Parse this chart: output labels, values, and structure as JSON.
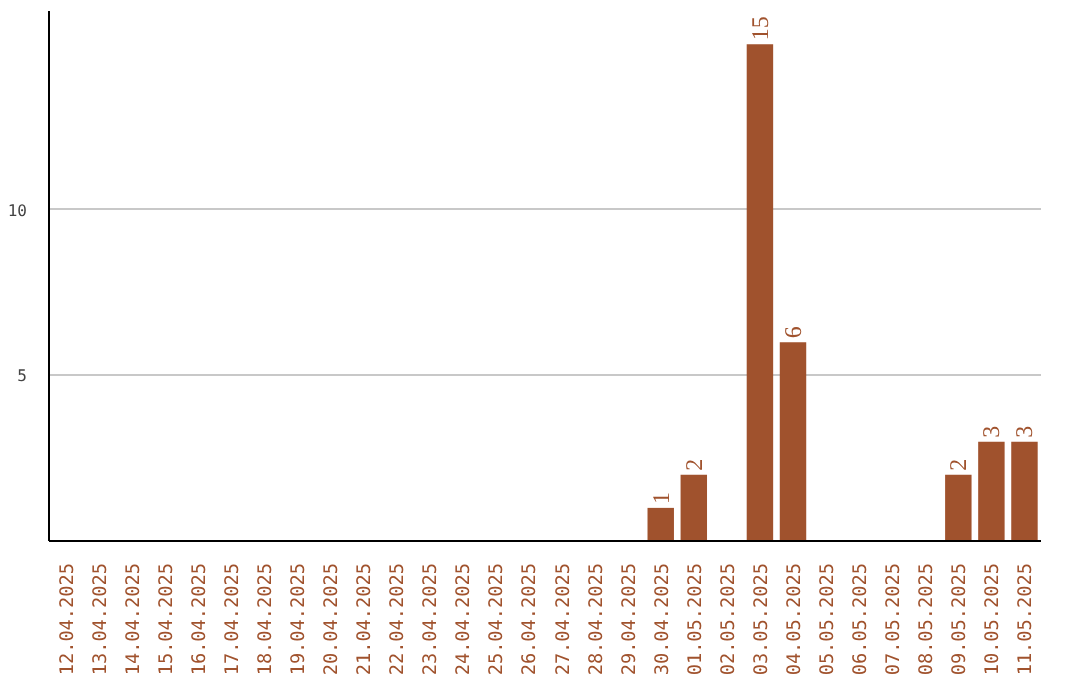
{
  "chart_data": {
    "type": "bar",
    "categories": [
      "12.04.2025",
      "13.04.2025",
      "14.04.2025",
      "15.04.2025",
      "16.04.2025",
      "17.04.2025",
      "18.04.2025",
      "19.04.2025",
      "20.04.2025",
      "21.04.2025",
      "22.04.2025",
      "23.04.2025",
      "24.04.2025",
      "25.04.2025",
      "26.04.2025",
      "27.04.2025",
      "28.04.2025",
      "29.04.2025",
      "30.04.2025",
      "01.05.2025",
      "02.05.2025",
      "03.05.2025",
      "04.05.2025",
      "05.05.2025",
      "06.05.2025",
      "07.05.2025",
      "08.05.2025",
      "09.05.2025",
      "10.05.2025",
      "11.05.2025"
    ],
    "values": [
      0,
      0,
      0,
      0,
      0,
      0,
      0,
      0,
      0,
      0,
      0,
      0,
      0,
      0,
      0,
      0,
      0,
      0,
      1,
      2,
      0,
      15,
      6,
      0,
      0,
      0,
      0,
      2,
      3,
      3
    ],
    "value_labels": [
      null,
      null,
      null,
      null,
      null,
      null,
      null,
      null,
      null,
      null,
      null,
      null,
      null,
      null,
      null,
      null,
      null,
      null,
      "1",
      "2",
      null,
      "15",
      "6",
      null,
      null,
      null,
      null,
      "2",
      "3",
      "3"
    ],
    "color": "#a0522d",
    "ylim": [
      0,
      16
    ],
    "yticks": [
      5,
      10
    ],
    "grid": "y"
  }
}
